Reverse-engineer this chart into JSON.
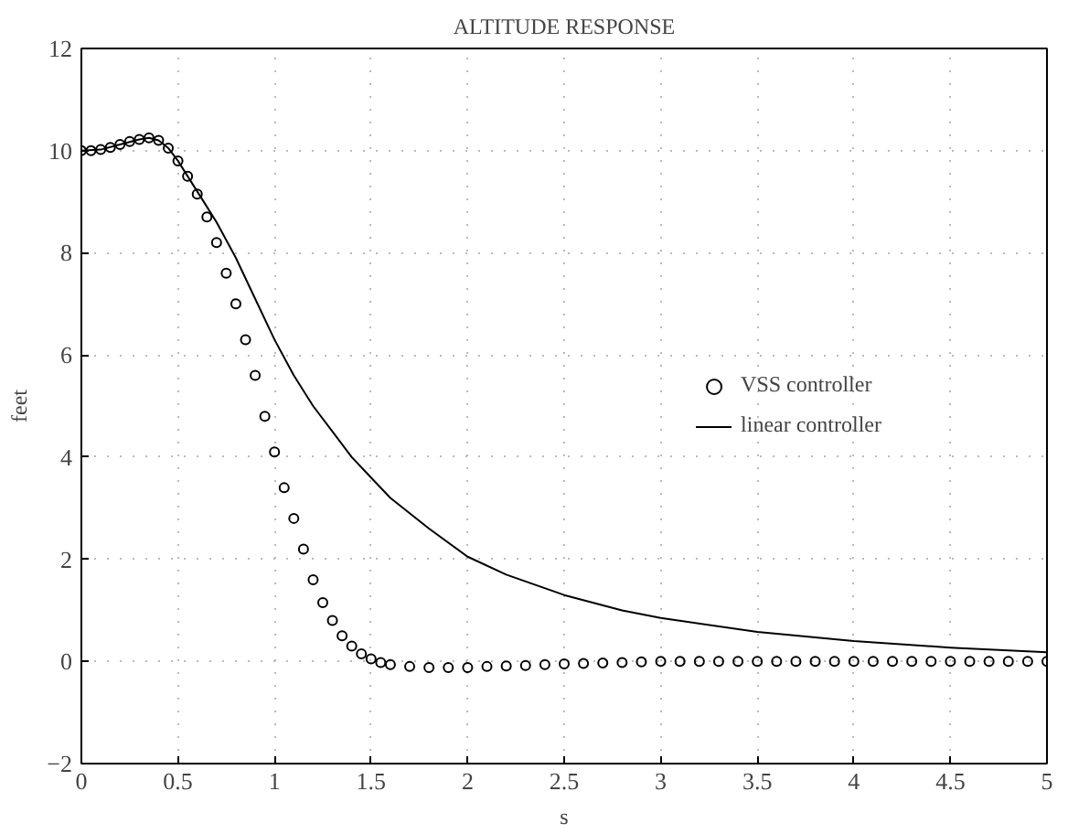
{
  "chart_data": {
    "type": "line",
    "title": "ALTITUDE RESPONSE",
    "xlabel": "s",
    "ylabel": "feet",
    "xlim": [
      0,
      5
    ],
    "ylim": [
      -2,
      12
    ],
    "xticks": [
      0,
      0.5,
      1,
      1.5,
      2,
      2.5,
      3,
      3.5,
      4,
      4.5,
      5
    ],
    "yticks": [
      -2,
      0,
      2,
      4,
      6,
      8,
      10,
      12
    ],
    "grid": true,
    "legend": "right",
    "series": [
      {
        "name": "VSS controller",
        "type": "scatter",
        "marker": "circle",
        "color": "#000000",
        "x": [
          0,
          0.05,
          0.1,
          0.15,
          0.2,
          0.25,
          0.3,
          0.35,
          0.4,
          0.45,
          0.5,
          0.55,
          0.6,
          0.65,
          0.7,
          0.75,
          0.8,
          0.85,
          0.9,
          0.95,
          1.0,
          1.05,
          1.1,
          1.15,
          1.2,
          1.25,
          1.3,
          1.35,
          1.4,
          1.45,
          1.5,
          1.55,
          1.6,
          1.7,
          1.8,
          1.9,
          2.0,
          2.1,
          2.2,
          2.3,
          2.4,
          2.5,
          2.6,
          2.7,
          2.8,
          2.9,
          3.0,
          3.1,
          3.2,
          3.3,
          3.4,
          3.5,
          3.6,
          3.7,
          3.8,
          3.9,
          4.0,
          4.1,
          4.2,
          4.3,
          4.4,
          4.5,
          4.6,
          4.7,
          4.8,
          4.9,
          5.0
        ],
        "values": [
          10,
          10,
          10.02,
          10.06,
          10.12,
          10.18,
          10.22,
          10.25,
          10.2,
          10.05,
          9.8,
          9.5,
          9.15,
          8.7,
          8.2,
          7.6,
          7.0,
          6.3,
          5.6,
          4.8,
          4.1,
          3.4,
          2.8,
          2.2,
          1.6,
          1.15,
          0.8,
          0.5,
          0.3,
          0.15,
          0.05,
          -0.02,
          -0.06,
          -0.1,
          -0.12,
          -0.12,
          -0.12,
          -0.1,
          -0.09,
          -0.08,
          -0.06,
          -0.05,
          -0.04,
          -0.03,
          -0.02,
          -0.01,
          0,
          0,
          0,
          0,
          0,
          0,
          0,
          0,
          0,
          0,
          0,
          0,
          0,
          0,
          0,
          0,
          0,
          0,
          0,
          0,
          0
        ]
      },
      {
        "name": "linear controller",
        "marker": "none",
        "line_style": "solid",
        "color": "#000000",
        "x": [
          0,
          0.1,
          0.2,
          0.3,
          0.35,
          0.4,
          0.45,
          0.5,
          0.55,
          0.6,
          0.65,
          0.7,
          0.8,
          0.9,
          1.0,
          1.1,
          1.2,
          1.3,
          1.4,
          1.5,
          1.6,
          1.8,
          2.0,
          2.2,
          2.5,
          2.8,
          3.0,
          3.5,
          4.0,
          4.5,
          5.0
        ],
        "values": [
          10,
          10.02,
          10.12,
          10.22,
          10.25,
          10.2,
          10.05,
          9.8,
          9.5,
          9.2,
          8.9,
          8.6,
          7.9,
          7.1,
          6.3,
          5.6,
          5.0,
          4.5,
          4.0,
          3.6,
          3.2,
          2.6,
          2.05,
          1.7,
          1.3,
          1.0,
          0.85,
          0.58,
          0.4,
          0.27,
          0.18
        ]
      }
    ]
  }
}
